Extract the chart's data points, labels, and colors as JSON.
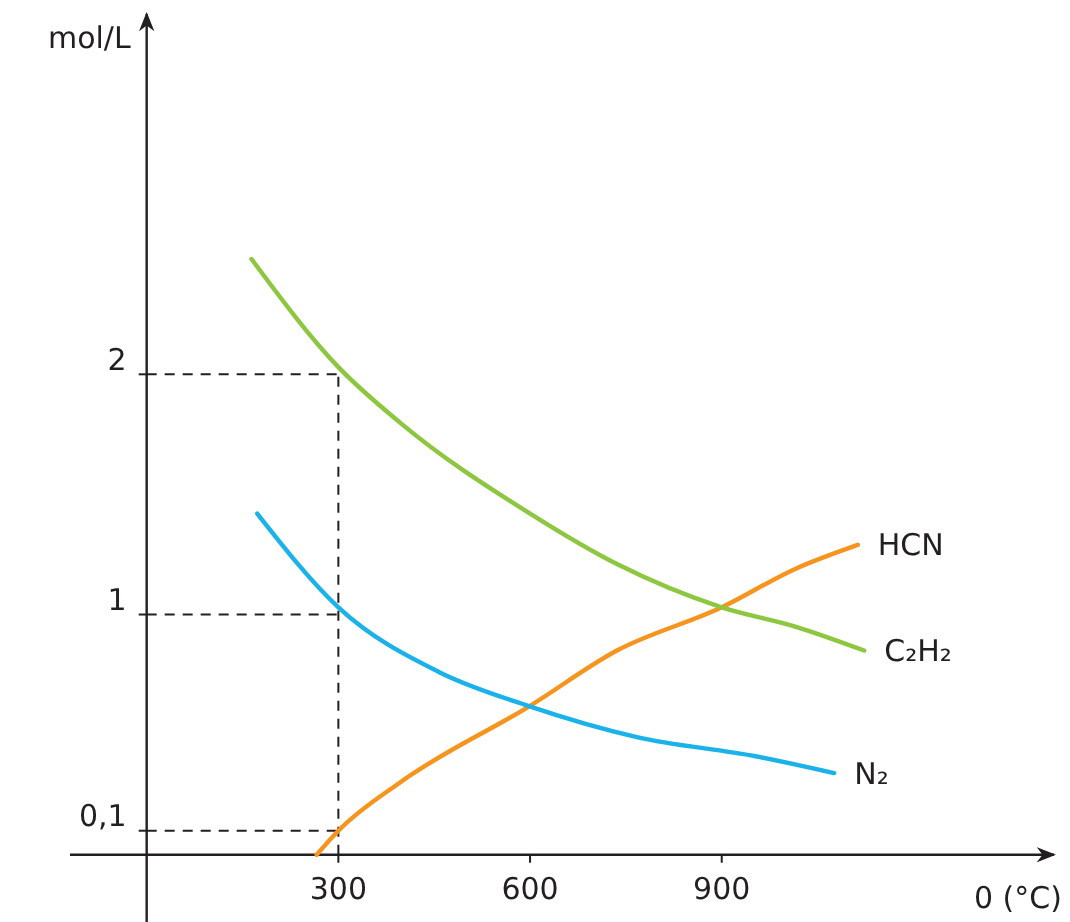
{
  "chart_data": {
    "type": "line",
    "xlabel": "0 (°C)",
    "ylabel": "mol/L",
    "xlim": [
      -120,
      1420
    ],
    "ylim": [
      -0.28,
      3.5
    ],
    "xticks": [
      300,
      600,
      900
    ],
    "yticks": [
      {
        "value": 0.1,
        "label": "0,1"
      },
      1,
      2
    ],
    "grid": false,
    "legend": false,
    "marker": "none",
    "line_style": "solid",
    "ref_lines": [
      {
        "axis": "x",
        "value": 300,
        "line_style": "dashed",
        "color": "#231f20"
      },
      {
        "axis": "y",
        "value": 2,
        "line_style": "dashed",
        "color": "#231f20"
      },
      {
        "axis": "y",
        "value": 1,
        "line_style": "dashed",
        "color": "#231f20"
      },
      {
        "axis": "y",
        "value": 0.1,
        "line_style": "dashed",
        "color": "#231f20"
      }
    ],
    "series": [
      {
        "name": "HCN",
        "color": "#f7941d",
        "x": [
          266,
          300,
          396,
          600,
          736,
          900,
          1015,
          1113
        ],
        "values": [
          0,
          0.1,
          0.3,
          0.62,
          0.85,
          1.03,
          1.19,
          1.29
        ]
      },
      {
        "name": "C₂H₂",
        "color": "#8dc63f",
        "x": [
          164,
          300,
          396,
          600,
          736,
          900,
          1015,
          1123
        ],
        "values": [
          2.48,
          2.03,
          1.8,
          1.42,
          1.21,
          1.03,
          0.95,
          0.85
        ]
      },
      {
        "name": "N₂",
        "color": "#1ab2e8",
        "x": [
          173,
          300,
          458,
          597,
          767,
          953,
          1076
        ],
        "values": [
          1.42,
          1.03,
          0.76,
          0.62,
          0.49,
          0.41,
          0.34
        ]
      }
    ]
  }
}
